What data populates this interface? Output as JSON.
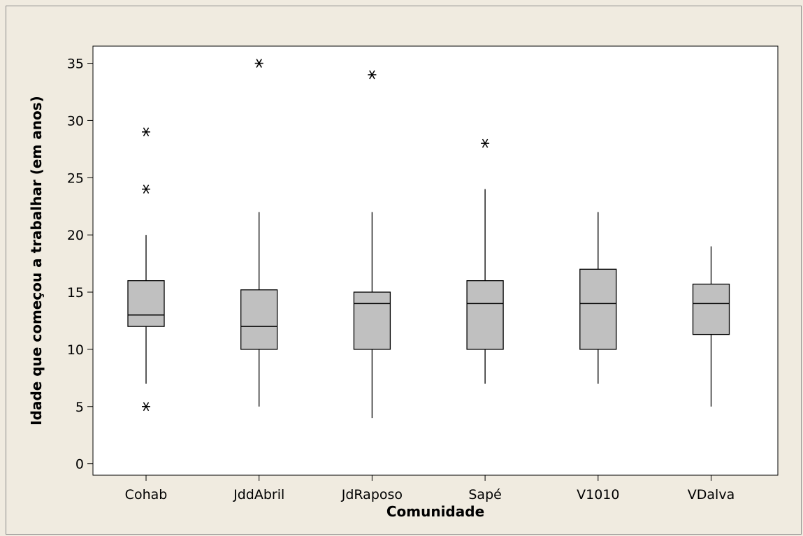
{
  "chart_data": {
    "type": "boxplot",
    "title": "",
    "xlabel": "Comunidade",
    "ylabel": "Idade que começou a trabalhar (em anos)",
    "ylim": [
      -1,
      36.5
    ],
    "yticks": [
      0,
      5,
      10,
      15,
      20,
      25,
      30,
      35
    ],
    "grid": false,
    "colors": {
      "box_fill": "#c0c0c0",
      "stroke": "#000000",
      "plot_bg": "#ffffff",
      "page_bg": "#f0ebe0"
    },
    "categories": [
      "Cohab",
      "JddAbril",
      "JdRaposo",
      "Sapé",
      "V1010",
      "VDalva"
    ],
    "boxes": [
      {
        "category": "Cohab",
        "whisker_low": 7,
        "q1": 12,
        "median": 13,
        "q3": 16,
        "whisker_high": 20,
        "outliers": [
          5,
          24,
          29
        ]
      },
      {
        "category": "JddAbril",
        "whisker_low": 5,
        "q1": 10,
        "median": 12,
        "q3": 15.2,
        "whisker_high": 22,
        "outliers": [
          35
        ]
      },
      {
        "category": "JdRaposo",
        "whisker_low": 4,
        "q1": 10,
        "median": 14,
        "q3": 15,
        "whisker_high": 22,
        "outliers": [
          34
        ]
      },
      {
        "category": "Sapé",
        "whisker_low": 7,
        "q1": 10,
        "median": 14,
        "q3": 16,
        "whisker_high": 24,
        "outliers": [
          28
        ]
      },
      {
        "category": "V1010",
        "whisker_low": 7,
        "q1": 10,
        "median": 14,
        "q3": 17,
        "whisker_high": 22,
        "outliers": []
      },
      {
        "category": "VDalva",
        "whisker_low": 5,
        "q1": 11.3,
        "median": 14,
        "q3": 15.7,
        "whisker_high": 19,
        "outliers": []
      }
    ],
    "outlier_marker": "asterisk"
  }
}
